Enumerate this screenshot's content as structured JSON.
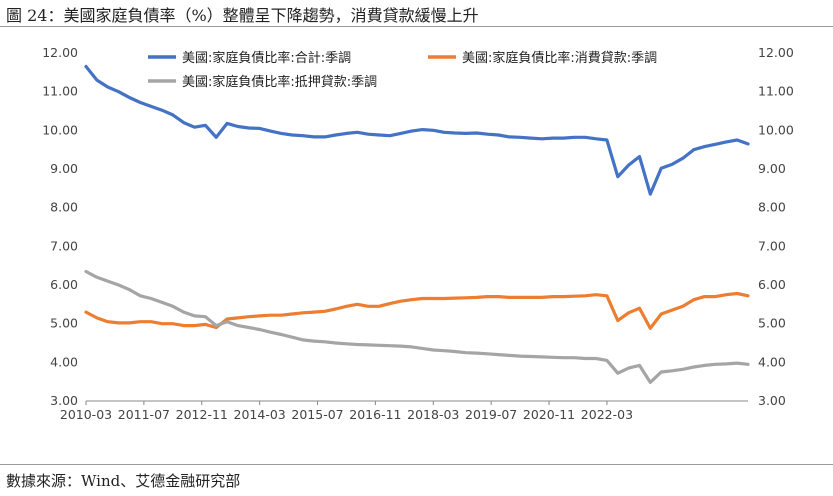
{
  "figure": {
    "title": "圖 24：美國家庭負債率（%）整體呈下降趨勢，消費貸款緩慢上升",
    "source": "數據來源：Wind、艾德金融研究部"
  },
  "chart_data": {
    "type": "line",
    "title": "",
    "xlabel": "",
    "ylabel": "",
    "x_tick_labels": [
      "2010-03",
      "2011-07",
      "2012-11",
      "2014-03",
      "2015-07",
      "2016-11",
      "2018-03",
      "2019-07",
      "2020-11",
      "2022-03"
    ],
    "y_left": {
      "range": [
        3,
        12
      ],
      "ticks": [
        "12.00",
        "11.00",
        "10.00",
        "9.00",
        "8.00",
        "7.00",
        "6.00",
        "5.00",
        "4.00",
        "3.00"
      ]
    },
    "y_right": {
      "range": [
        3,
        12
      ],
      "ticks": [
        "12.00",
        "11.00",
        "10.00",
        "9.00",
        "8.00",
        "7.00",
        "6.00",
        "5.00",
        "4.00",
        "3.00"
      ]
    },
    "grid": false,
    "legend": "top",
    "x_start": "2010-03",
    "x_step_months": 3,
    "series": [
      {
        "name": "美國:家庭負債比率:合計:季調",
        "color": "#4472C4",
        "values": [
          11.65,
          11.3,
          11.12,
          11.0,
          10.85,
          10.72,
          10.62,
          10.52,
          10.4,
          10.2,
          10.08,
          10.13,
          9.82,
          10.18,
          10.1,
          10.06,
          10.05,
          9.98,
          9.92,
          9.88,
          9.86,
          9.83,
          9.83,
          9.88,
          9.92,
          9.95,
          9.9,
          9.88,
          9.86,
          9.92,
          9.98,
          10.02,
          10.0,
          9.95,
          9.93,
          9.92,
          9.93,
          9.9,
          9.88,
          9.83,
          9.82,
          9.8,
          9.78,
          9.8,
          9.8,
          9.82,
          9.82,
          9.78,
          9.75,
          8.8,
          9.1,
          9.32,
          8.35,
          9.02,
          9.12,
          9.28,
          9.5,
          9.58,
          9.64,
          9.7,
          9.75,
          9.65
        ]
      },
      {
        "name": "美國:家庭負債比率:消費貸款:季調",
        "color": "#ED7D31",
        "values": [
          5.3,
          5.15,
          5.05,
          5.02,
          5.02,
          5.05,
          5.05,
          5.0,
          5.0,
          4.95,
          4.95,
          4.98,
          4.9,
          5.12,
          5.15,
          5.18,
          5.2,
          5.22,
          5.22,
          5.25,
          5.28,
          5.3,
          5.32,
          5.38,
          5.45,
          5.5,
          5.45,
          5.45,
          5.52,
          5.58,
          5.62,
          5.65,
          5.65,
          5.65,
          5.66,
          5.67,
          5.68,
          5.7,
          5.7,
          5.68,
          5.68,
          5.68,
          5.68,
          5.7,
          5.7,
          5.71,
          5.72,
          5.75,
          5.72,
          5.08,
          5.28,
          5.4,
          4.88,
          5.25,
          5.35,
          5.45,
          5.62,
          5.7,
          5.7,
          5.75,
          5.78,
          5.72
        ]
      },
      {
        "name": "美國:家庭負債比率:抵押貸款:季調",
        "color": "#A5A5A5",
        "values": [
          6.35,
          6.2,
          6.1,
          6.0,
          5.88,
          5.72,
          5.65,
          5.55,
          5.45,
          5.3,
          5.2,
          5.18,
          4.95,
          5.05,
          4.95,
          4.9,
          4.85,
          4.78,
          4.72,
          4.65,
          4.58,
          4.55,
          4.53,
          4.5,
          4.48,
          4.46,
          4.45,
          4.44,
          4.43,
          4.42,
          4.4,
          4.36,
          4.32,
          4.3,
          4.28,
          4.25,
          4.24,
          4.22,
          4.2,
          4.18,
          4.16,
          4.15,
          4.14,
          4.13,
          4.12,
          4.12,
          4.1,
          4.1,
          4.05,
          3.72,
          3.85,
          3.92,
          3.48,
          3.75,
          3.78,
          3.82,
          3.88,
          3.92,
          3.95,
          3.96,
          3.98,
          3.95
        ]
      }
    ]
  }
}
